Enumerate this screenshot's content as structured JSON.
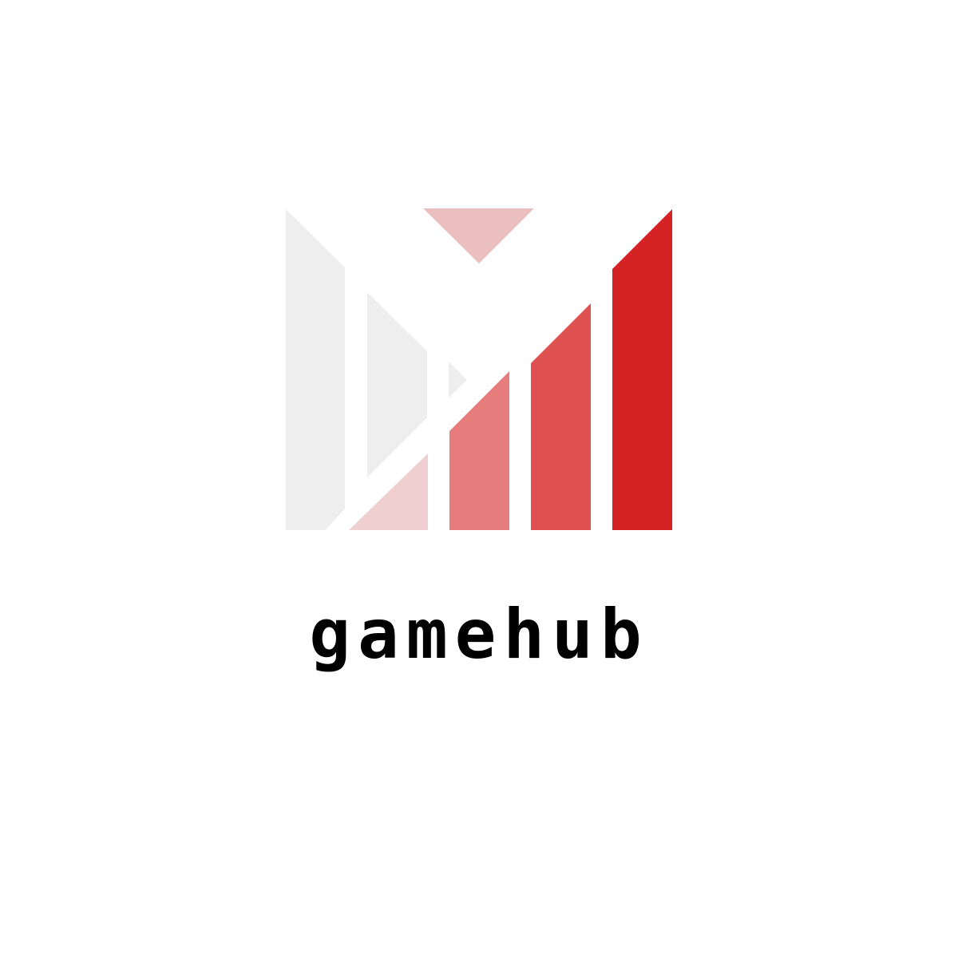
{
  "brand": {
    "name": "gamehub",
    "logo": {
      "icon": "stylized-m-bars-logo",
      "colors": {
        "light_gray": "#eeeeee",
        "top_triangle": "#ebbfbf",
        "pale_red": "#efcfcf",
        "light_red": "#e67c7c",
        "mid_red": "#df5151",
        "dark_red": "#d52224"
      }
    }
  }
}
